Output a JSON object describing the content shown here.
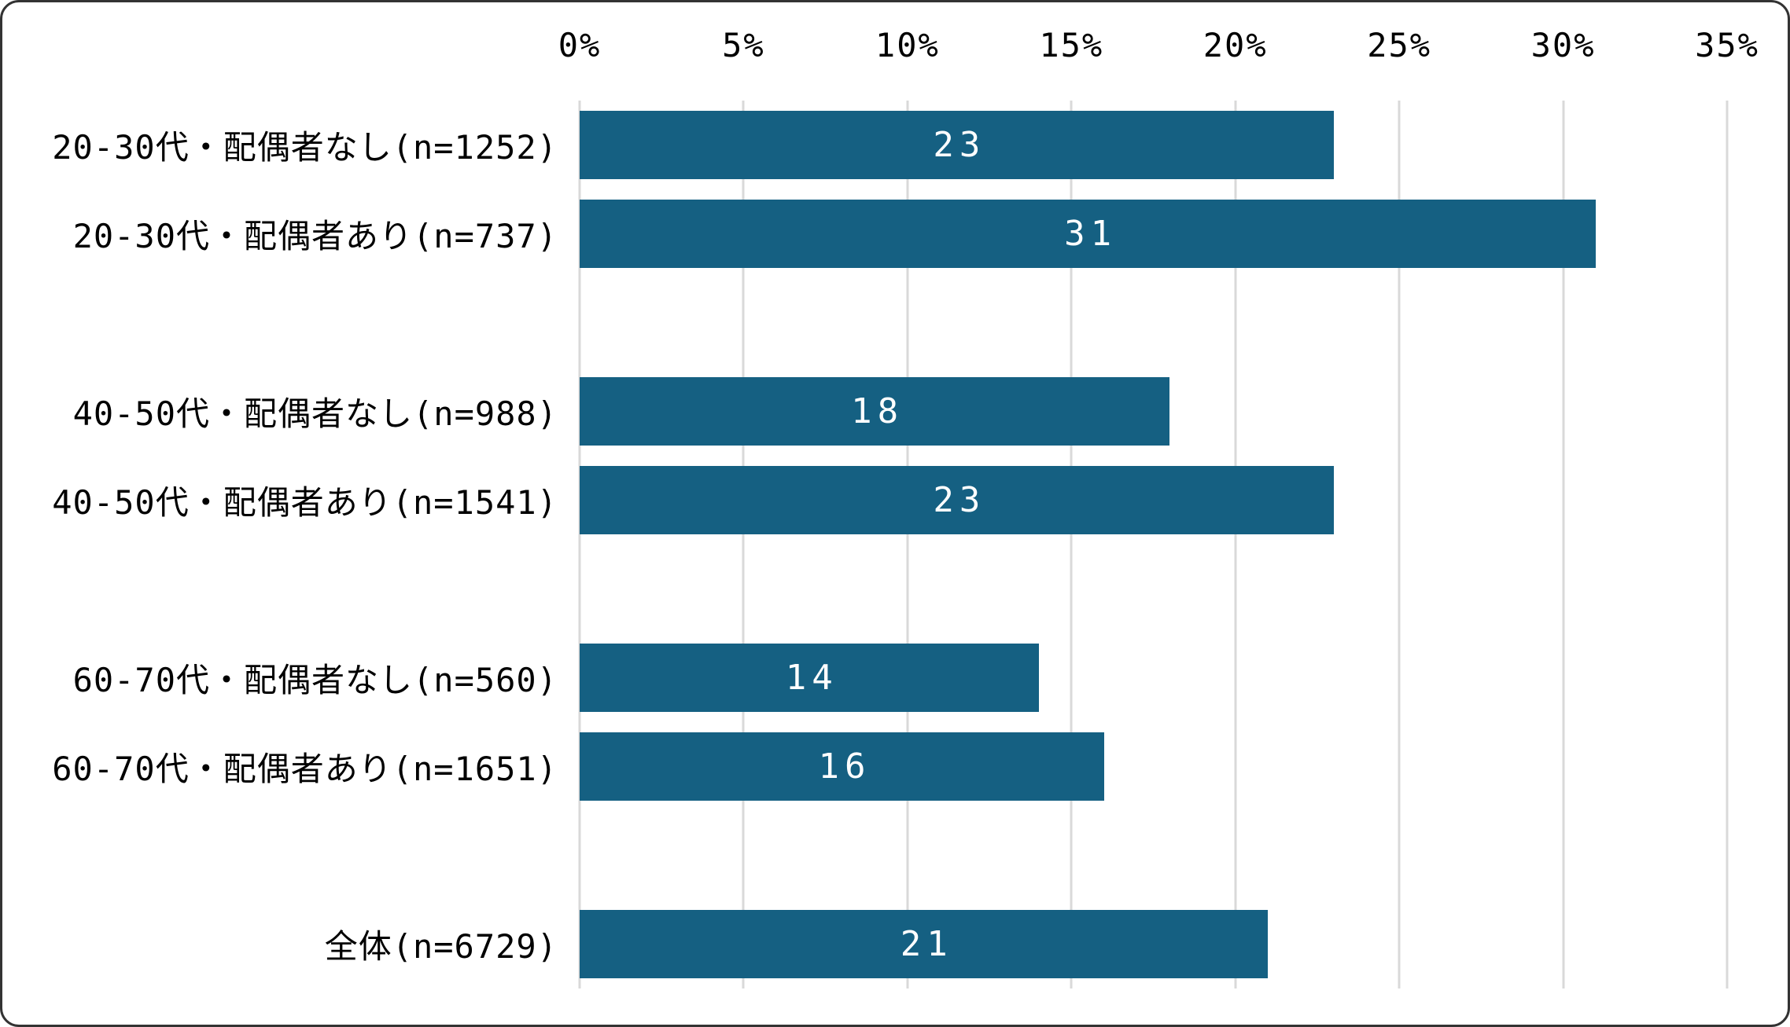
{
  "chart_data": {
    "type": "bar",
    "orientation": "horizontal",
    "title": "",
    "categories": [
      "20-30代・配偶者なし(n=1252)",
      "20-30代・配偶者あり(n=737)",
      "",
      "40-50代・配偶者なし(n=988)",
      "40-50代・配偶者あり(n=1541)",
      "",
      "60-70代・配偶者なし(n=560)",
      "60-70代・配偶者あり(n=1651)",
      "",
      "全体(n=6729)"
    ],
    "values": [
      23,
      31,
      null,
      18,
      23,
      null,
      14,
      16,
      null,
      21
    ],
    "data_labels": [
      "23",
      "31",
      null,
      "18",
      "23",
      null,
      "14",
      "16",
      null,
      "21"
    ],
    "sample_sizes": [
      1252,
      737,
      null,
      988,
      1541,
      null,
      560,
      1651,
      null,
      6729
    ],
    "xlabel": "",
    "ylabel": "",
    "xlim": [
      0,
      35
    ],
    "x_tick_values": [
      0,
      5,
      10,
      15,
      20,
      25,
      30,
      35
    ],
    "x_tick_labels": [
      "0%",
      "5%",
      "10%",
      "15%",
      "20%",
      "25%",
      "30%",
      "35%"
    ],
    "grid": true,
    "legend": "none",
    "axis_position": "top",
    "colors": {
      "bar": "#156082",
      "gridline": "#d9d9d9",
      "data_label": "#ffffff",
      "axis_text": "#000000",
      "frame_border": "#333333",
      "background": "#ffffff"
    }
  }
}
